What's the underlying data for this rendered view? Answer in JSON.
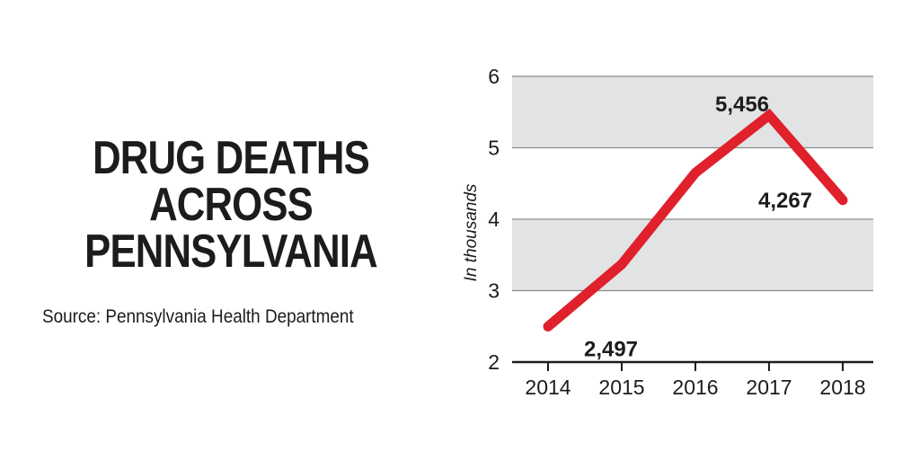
{
  "title": {
    "lines": [
      "DRUG DEATHS",
      "ACROSS",
      "PENNSYLVANIA"
    ]
  },
  "source": "Source: Pennsylvania Health Department",
  "colors": {
    "line": "#e0202b",
    "band": "#e2e3e5",
    "grid": "#8a8a8a",
    "text": "#1c1c1c"
  },
  "chart_data": {
    "type": "line",
    "title": "DRUG DEATHS ACROSS PENNSYLVANIA",
    "xlabel": "",
    "ylabel": "In thousands",
    "x": [
      "2014",
      "2015",
      "2016",
      "2017",
      "2018"
    ],
    "series": [
      {
        "values": [
          2.497,
          3.37,
          4.65,
          5.456,
          4.267
        ]
      }
    ],
    "ylim": [
      2,
      6
    ],
    "yticks": [
      "2",
      "3",
      "4",
      "5",
      "6"
    ],
    "data_labels": [
      {
        "index": 0,
        "text": "2,497"
      },
      {
        "index": 3,
        "text": "5,456"
      },
      {
        "index": 4,
        "text": "4,267"
      }
    ],
    "grid": true,
    "bands": [
      [
        3,
        4
      ],
      [
        5,
        6
      ]
    ]
  }
}
